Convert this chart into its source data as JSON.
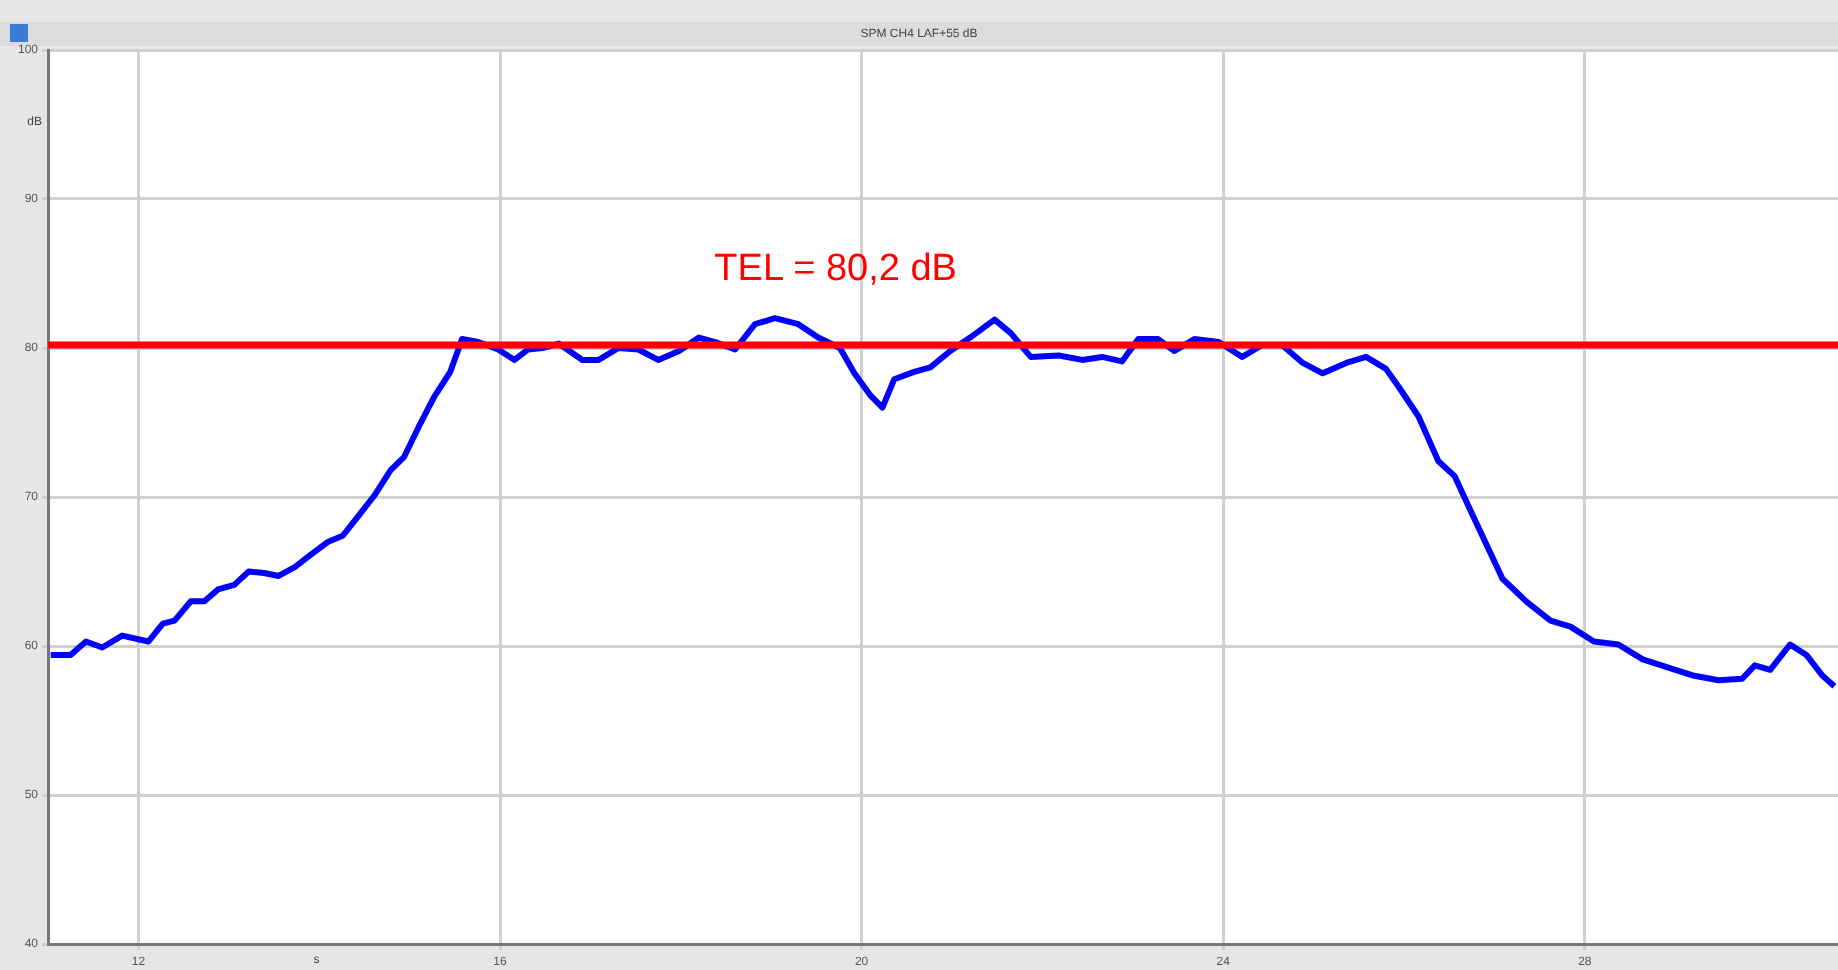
{
  "chart_data": {
    "type": "line",
    "title": "SPM CH4 LAF+55 dB",
    "xlabel": "s",
    "ylabel": "dB",
    "x": [
      11.03,
      11.25,
      11.42,
      11.6,
      11.82,
      12.11,
      12.27,
      12.4,
      12.58,
      12.73,
      12.88,
      13.06,
      13.22,
      13.39,
      13.55,
      13.73,
      13.9,
      14.1,
      14.26,
      14.43,
      14.61,
      14.79,
      14.94,
      15.1,
      15.27,
      15.45,
      15.58,
      15.76,
      15.98,
      16.16,
      16.31,
      16.47,
      16.65,
      16.91,
      17.09,
      17.31,
      17.53,
      17.75,
      17.98,
      18.2,
      18.38,
      18.6,
      18.82,
      19.04,
      19.3,
      19.52,
      19.76,
      19.92,
      20.1,
      20.23,
      20.36,
      20.58,
      20.76,
      20.98,
      21.2,
      21.47,
      21.65,
      21.87,
      22.18,
      22.44,
      22.66,
      22.88,
      23.06,
      23.28,
      23.46,
      23.68,
      23.95,
      24.21,
      24.43,
      24.65,
      24.88,
      25.1,
      25.36,
      25.58,
      25.8,
      25.94,
      26.16,
      26.38,
      26.56,
      26.78,
      27.09,
      27.35,
      27.62,
      27.84,
      28.1,
      28.37,
      28.64,
      28.95,
      29.21,
      29.48,
      29.74,
      29.88,
      30.05,
      30.27,
      30.45,
      30.63,
      30.76
    ],
    "series": [
      {
        "color": "#0000ff",
        "values": [
          59.4,
          59.4,
          60.3,
          59.9,
          60.7,
          60.3,
          61.5,
          61.7,
          63.0,
          63.0,
          63.8,
          64.1,
          65.0,
          64.9,
          64.7,
          65.3,
          66.1,
          67.0,
          67.4,
          68.7,
          70.1,
          71.8,
          72.7,
          74.7,
          76.7,
          78.4,
          80.6,
          80.4,
          79.9,
          79.2,
          79.9,
          80.0,
          80.3,
          79.2,
          79.2,
          80.0,
          79.9,
          79.2,
          79.8,
          80.7,
          80.4,
          79.9,
          81.6,
          82.0,
          81.6,
          80.7,
          80.0,
          78.3,
          76.8,
          76.0,
          77.9,
          78.4,
          78.7,
          79.8,
          80.7,
          81.9,
          81.0,
          79.4,
          79.5,
          79.2,
          79.4,
          79.1,
          80.6,
          80.6,
          79.8,
          80.6,
          80.4,
          79.4,
          80.2,
          80.2,
          79.0,
          78.3,
          79.0,
          79.4,
          78.6,
          77.4,
          75.4,
          72.4,
          71.4,
          68.5,
          64.5,
          63.0,
          61.7,
          61.3,
          60.3,
          60.1,
          59.1,
          58.5,
          58.0,
          57.7,
          57.8,
          58.7,
          58.4,
          60.1,
          59.4,
          58.0,
          57.3
        ]
      }
    ],
    "xlim": [
      11,
      30.8
    ],
    "xticks": [
      12,
      16,
      20,
      24,
      28
    ],
    "ylim": [
      40,
      100
    ],
    "yticks": [
      40,
      50,
      60,
      70,
      80,
      90,
      100
    ],
    "ref_lines": [
      {
        "axis": "y",
        "value": 80.2,
        "label": "TEL = 80,2 dB",
        "color": "#ff0000"
      }
    ],
    "grid": true,
    "legend": false,
    "marker": "none",
    "line_style": "solid"
  }
}
